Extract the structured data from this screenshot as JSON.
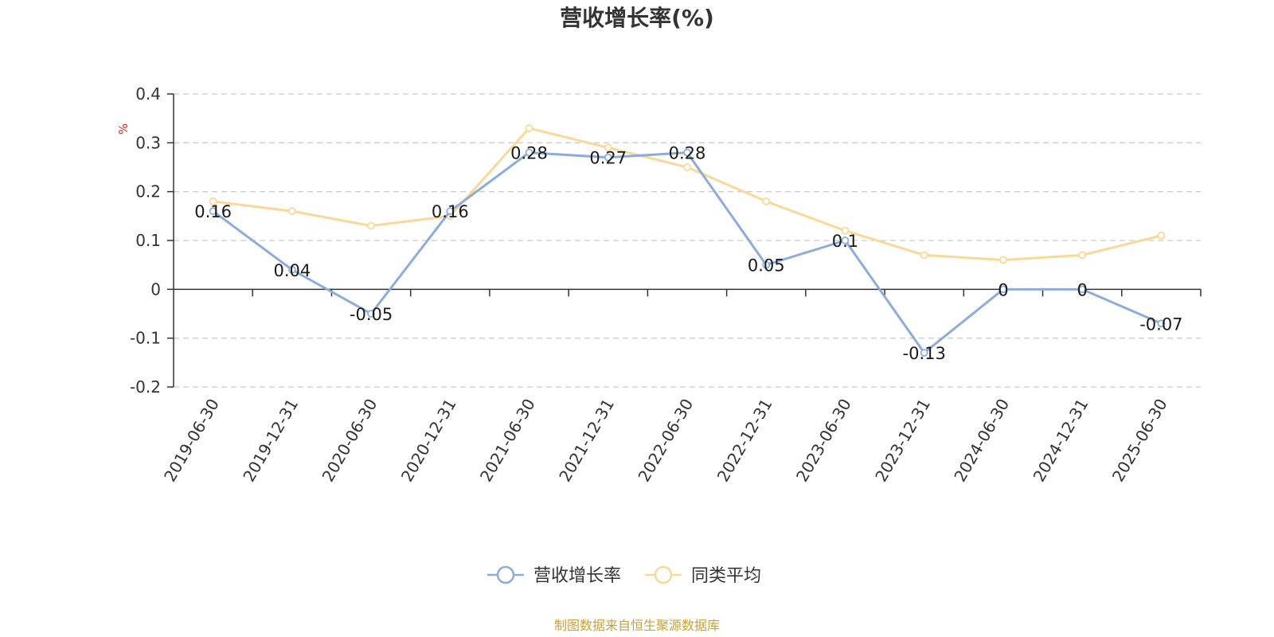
{
  "chart_data": {
    "type": "line",
    "title": "营收增长率(%)",
    "ylabel": "%",
    "ylim": [
      -0.2,
      0.4
    ],
    "yticks": [
      -0.2,
      -0.1,
      0,
      0.1,
      0.2,
      0.3,
      0.4
    ],
    "ytick_labels": [
      "-0.2",
      "-0.1",
      "0",
      "0.1",
      "0.2",
      "0.3",
      "0.4"
    ],
    "grid": true,
    "legend_position": "bottom-center",
    "categories": [
      "2019-06-30",
      "2019-12-31",
      "2020-06-30",
      "2020-12-31",
      "2021-06-30",
      "2021-12-31",
      "2022-06-30",
      "2022-12-31",
      "2023-06-30",
      "2023-12-31",
      "2024-06-30",
      "2024-12-31",
      "2025-06-30"
    ],
    "series": [
      {
        "name": "营收增长率",
        "color": "#8eacd9",
        "values": [
          0.16,
          0.04,
          -0.05,
          0.16,
          0.28,
          0.27,
          0.28,
          0.05,
          0.1,
          -0.13,
          0,
          0,
          -0.07
        ],
        "labels": [
          "0.16",
          "0.04",
          "-0.05",
          "0.16",
          "0.28",
          "0.27",
          "0.28",
          "0.05",
          "0.1",
          "-0.13",
          "0",
          "0",
          "-0.07"
        ]
      },
      {
        "name": "同类平均",
        "color": "#f9d898",
        "values": [
          0.18,
          0.16,
          0.13,
          0.15,
          0.33,
          0.29,
          0.25,
          0.18,
          0.12,
          0.07,
          0.06,
          0.07,
          0.11
        ]
      }
    ],
    "source": "制图数据来自恒生聚源数据库"
  }
}
